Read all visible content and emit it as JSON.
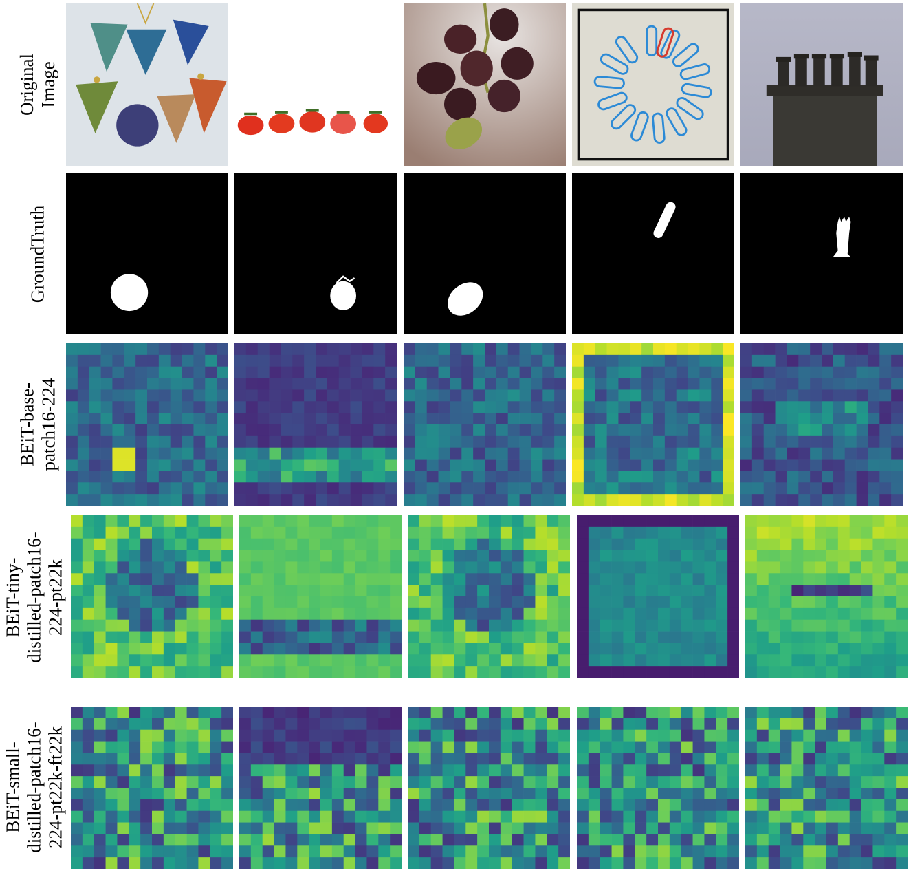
{
  "figure": {
    "row_labels": [
      "Original\nImage",
      "GroundTruth",
      "BEiT-base-\npatch16-224",
      "BEiT-tiny-\ndistilled-patch16-\n224-pt22k",
      "BEiT-small-\ndistilled-patch16-\n224-pt22k-ft22k"
    ],
    "images": [
      "pendants",
      "tomatoes",
      "grapes",
      "paperclips",
      "chimney"
    ],
    "colormap": "viridis"
  }
}
